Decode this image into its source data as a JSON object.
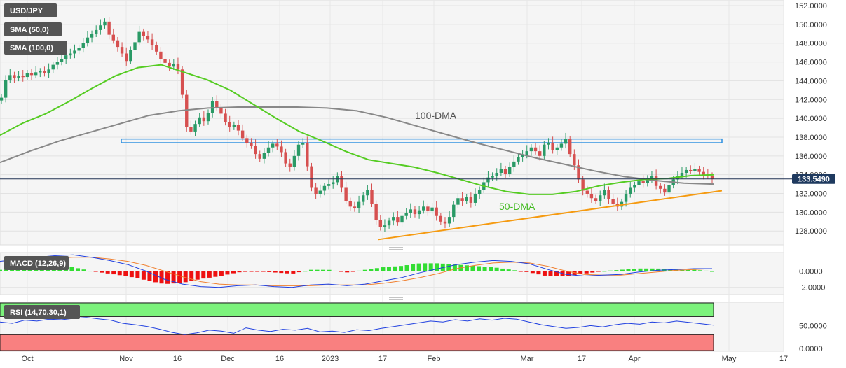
{
  "chart_data": [
    {
      "type": "candlestick",
      "title": "USD/JPY",
      "price_tag": "133.5490",
      "current_price": 133.549,
      "ylim": [
        126.9,
        152.3
      ],
      "y_ticks": [
        "152.0000",
        "150.0000",
        "148.0000",
        "146.0000",
        "144.0000",
        "142.0000",
        "140.0000",
        "138.0000",
        "136.0000",
        "134.0000",
        "132.0000",
        "130.0000",
        "128.0000"
      ],
      "x_ticks": [
        "Oct",
        "Nov",
        "16",
        "Dec",
        "16",
        "2023",
        "17",
        "Feb",
        "Mar",
        "17",
        "Apr",
        "May",
        "17"
      ],
      "legend": [
        "SMA (50,0)",
        "SMA (100,0)"
      ],
      "annotations": [
        "100-DMA",
        "50-DMA"
      ],
      "resistance_band": [
        137.4,
        137.8
      ],
      "support_line": {
        "from": [
          127.1
        ],
        "to": [
          132.3
        ]
      },
      "candles_close": [
        142.2,
        144.1,
        144.6,
        144.3,
        144.5,
        144.4,
        144.8,
        144.6,
        144.9,
        145.0,
        144.8,
        145.2,
        145.7,
        146.0,
        146.3,
        146.7,
        146.9,
        147.2,
        147.5,
        148.0,
        148.6,
        149.0,
        149.4,
        149.9,
        150.3,
        148.9,
        148.3,
        147.6,
        146.9,
        146.1,
        147.3,
        148.1,
        149.2,
        148.8,
        148.4,
        147.8,
        147.1,
        146.3,
        145.9,
        145.5,
        145.8,
        145.2,
        142.5,
        139.1,
        138.6,
        139.4,
        140.1,
        139.7,
        140.6,
        141.8,
        141.2,
        140.5,
        139.6,
        139.1,
        139.3,
        138.7,
        137.9,
        137.4,
        137.1,
        136.2,
        135.7,
        136.3,
        136.9,
        137.3,
        137.0,
        136.4,
        135.2,
        134.8,
        136.0,
        137.2,
        137.4,
        134.9,
        132.6,
        131.9,
        132.3,
        132.8,
        133.0,
        133.2,
        133.9,
        132.6,
        131.2,
        130.6,
        130.4,
        131.1,
        131.8,
        132.4,
        130.9,
        129.2,
        128.4,
        128.6,
        129.1,
        129.5,
        128.9,
        129.6,
        129.9,
        130.3,
        129.8,
        130.2,
        130.6,
        130.1,
        130.5,
        129.6,
        129.0,
        128.8,
        129.5,
        130.8,
        131.5,
        131.2,
        131.6,
        131.0,
        131.9,
        132.4,
        133.2,
        133.7,
        133.9,
        134.2,
        134.6,
        134.1,
        134.8,
        135.4,
        135.9,
        136.1,
        136.5,
        136.9,
        136.5,
        136.0,
        137.2,
        137.4,
        136.6,
        136.9,
        137.3,
        137.8,
        136.2,
        135.0,
        133.5,
        132.3,
        131.9,
        131.5,
        131.2,
        131.8,
        132.4,
        131.4,
        130.9,
        130.6,
        131.1,
        131.9,
        132.6,
        132.9,
        133.3,
        133.1,
        133.6,
        133.9,
        132.8,
        132.5,
        132.1,
        132.9,
        133.5,
        133.9,
        134.2,
        134.5,
        134.4,
        134.6,
        134.3,
        134.0,
        133.9,
        133.549
      ],
      "sma50": [
        138.2,
        139.5,
        140.5,
        141.8,
        143.2,
        144.5,
        145.4,
        145.7,
        144.9,
        144.1,
        143.0,
        141.5,
        140.0,
        138.6,
        137.6,
        136.5,
        135.6,
        135.2,
        134.8,
        134.2,
        133.5,
        132.8,
        132.2,
        131.9,
        131.9,
        132.2,
        132.8,
        133.2,
        133.5,
        133.6,
        133.9,
        134.0
      ],
      "sma100": [
        135.3,
        136.5,
        137.6,
        138.5,
        139.4,
        140.3,
        140.8,
        141.1,
        141.2,
        141.2,
        141.2,
        141.1,
        140.8,
        140.1,
        139.2,
        138.3,
        137.4,
        136.6,
        135.8,
        135.1,
        134.4,
        133.8,
        133.4,
        133.1,
        133.0
      ],
      "series": [
        {
          "name": "SMA (50,0)"
        },
        {
          "name": "SMA (100,0)"
        }
      ]
    },
    {
      "type": "macd",
      "title": "MACD (12,26,9)",
      "ylim": [
        -2.8,
        2.2
      ],
      "y_ticks": [
        "0.0000",
        "-2.0000"
      ],
      "macd": [
        1.2,
        1.5,
        1.7,
        1.9,
        2.0,
        1.7,
        1.3,
        0.8,
        0.0,
        -1.0,
        -1.6,
        -1.9,
        -2.0,
        -1.8,
        -1.7,
        -1.9,
        -2.0,
        -1.7,
        -1.6,
        -1.8,
        -1.6,
        -1.2,
        -0.8,
        -0.2,
        0.3,
        0.8,
        1.1,
        1.3,
        1.2,
        0.9,
        0.2,
        -0.4,
        -0.6,
        -0.5,
        -0.4,
        -0.1,
        0.1,
        0.2,
        0.3,
        0.3
      ],
      "signal": [
        1.1,
        1.3,
        1.5,
        1.6,
        1.7,
        1.7,
        1.5,
        1.2,
        0.7,
        0.0,
        -0.7,
        -1.3,
        -1.6,
        -1.7,
        -1.7,
        -1.8,
        -1.8,
        -1.8,
        -1.7,
        -1.7,
        -1.7,
        -1.5,
        -1.2,
        -0.8,
        -0.3,
        0.3,
        0.7,
        1.0,
        1.1,
        1.0,
        0.6,
        0.0,
        -0.4,
        -0.5,
        -0.5,
        -0.3,
        -0.1,
        0.1,
        0.2,
        0.3
      ]
    },
    {
      "type": "rsi",
      "title": "RSI (14,70,30,1)",
      "ylim": [
        -5,
        100
      ],
      "y_ticks": [
        "50.0000",
        "0.0000"
      ],
      "overbought": 70,
      "oversold": 30,
      "values": [
        58,
        55,
        62,
        60,
        64,
        63,
        66,
        68,
        65,
        62,
        55,
        52,
        48,
        42,
        35,
        30,
        34,
        40,
        38,
        33,
        45,
        40,
        37,
        42,
        40,
        44,
        36,
        38,
        35,
        41,
        39,
        44,
        48,
        52,
        56,
        60,
        58,
        63,
        60,
        65,
        62,
        66,
        64,
        58,
        52,
        48,
        44,
        46,
        50,
        47,
        52,
        55,
        53,
        58,
        56,
        60,
        57,
        54,
        51
      ]
    }
  ]
}
